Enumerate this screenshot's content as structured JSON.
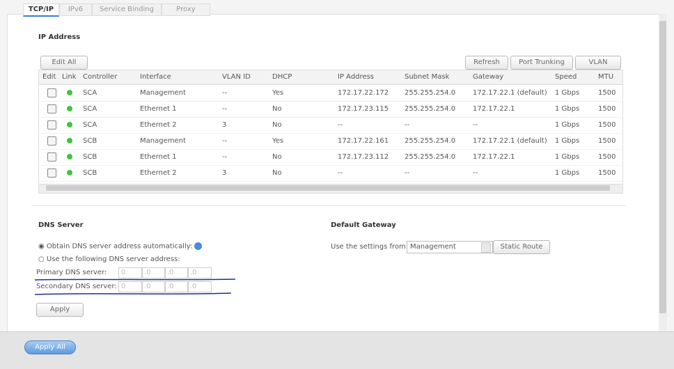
{
  "tabs": [
    "TCP/IP",
    "IPv6",
    "Service Binding",
    "Proxy"
  ],
  "ip_address": {
    "title": "IP Address",
    "edit_all": "Edit All",
    "refresh": "Refresh",
    "port_trunking": "Port Trunking",
    "vlan": "VLAN"
  },
  "table": {
    "headers": [
      "Edit",
      "Link",
      "Controller",
      "Interface",
      "VLAN ID",
      "DHCP",
      "IP Address",
      "Subnet Mask",
      "Gateway",
      "Speed",
      "MTU"
    ],
    "rows": [
      [
        "SCA",
        "Management",
        "--",
        "Yes",
        "172.17.22.172",
        "255.255.254.0",
        "172.17.22.1 (default)",
        "1 Gbps",
        "1500"
      ],
      [
        "SCA",
        "Ethernet 1",
        "--",
        "No",
        "172.17.23.115",
        "255.255.254.0",
        "172.17.22.1",
        "1 Gbps",
        "1500"
      ],
      [
        "SCA",
        "Ethernet 2",
        "3",
        "No",
        "--",
        "--",
        "--",
        "1 Gbps",
        "1500"
      ],
      [
        "SCB",
        "Management",
        "--",
        "Yes",
        "172.17.22.161",
        "255.255.254.0",
        "172.17.22.1 (default)",
        "1 Gbps",
        "1500"
      ],
      [
        "SCB",
        "Ethernet 1",
        "--",
        "No",
        "172.17.23.112",
        "255.255.254.0",
        "172.17.22.1",
        "1 Gbps",
        "1500"
      ],
      [
        "SCB",
        "Ethernet 2",
        "3",
        "No",
        "--",
        "--",
        "--",
        "1 Gbps",
        "1500"
      ]
    ]
  },
  "dns": {
    "title": "DNS Server",
    "option_auto": "Obtain DNS server address automatically:",
    "option_manual": "Use the following DNS server address:",
    "primary_label": "Primary DNS server:",
    "primary_fields": [
      "0",
      ".0",
      ".0",
      ".0"
    ],
    "secondary_label": "Secondary DNS server:",
    "secondary_fields": [
      "0",
      ".0",
      ".0",
      ".0"
    ],
    "apply": "Apply"
  },
  "gateway": {
    "title": "Default Gateway",
    "label": "Use the settings from:",
    "selected": "Management",
    "static_route": "Static Route"
  },
  "apply_all": "Apply All"
}
